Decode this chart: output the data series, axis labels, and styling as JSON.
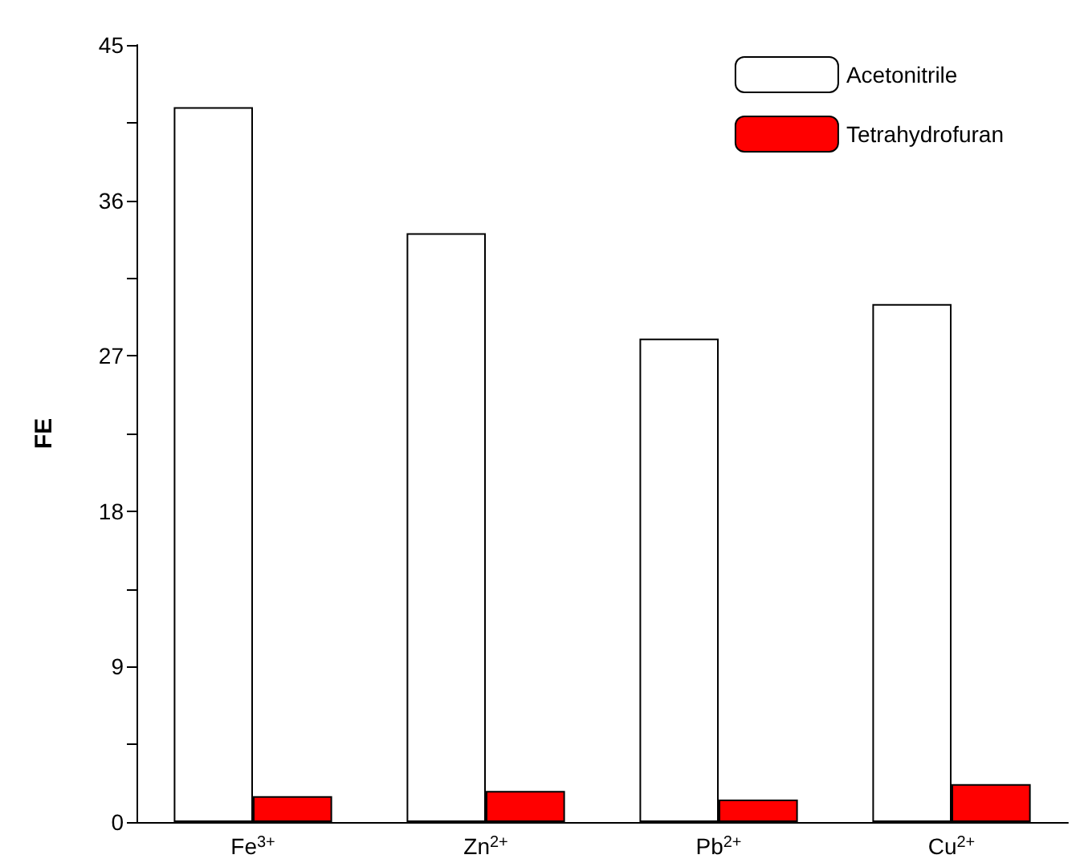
{
  "chart_data": {
    "type": "bar",
    "ylabel": "FE",
    "categories": [
      "Fe$^{3+}$",
      "Zn$^{2+}$",
      "Pb$^{2+}$",
      "Cu$^{2+}$"
    ],
    "series": [
      {
        "name": "Acetonitrile",
        "color": "#ffffff",
        "values": [
          41.4,
          34.1,
          28.0,
          30.0
        ]
      },
      {
        "name": "Tetrahydrofuran",
        "color": "#ff0000",
        "values": [
          1.5,
          1.8,
          1.3,
          2.2
        ]
      }
    ],
    "ylim": [
      0,
      45
    ],
    "yticks": [
      0,
      {
        "value": 4.5,
        "label": null
      },
      9,
      {
        "value": 13.5,
        "label": null
      },
      18,
      {
        "value": 22.5,
        "label": null
      },
      27,
      {
        "value": 31.5,
        "label": null
      },
      36,
      {
        "value": 40.5,
        "label": null
      },
      45
    ],
    "grid": false,
    "legend": "top right"
  }
}
